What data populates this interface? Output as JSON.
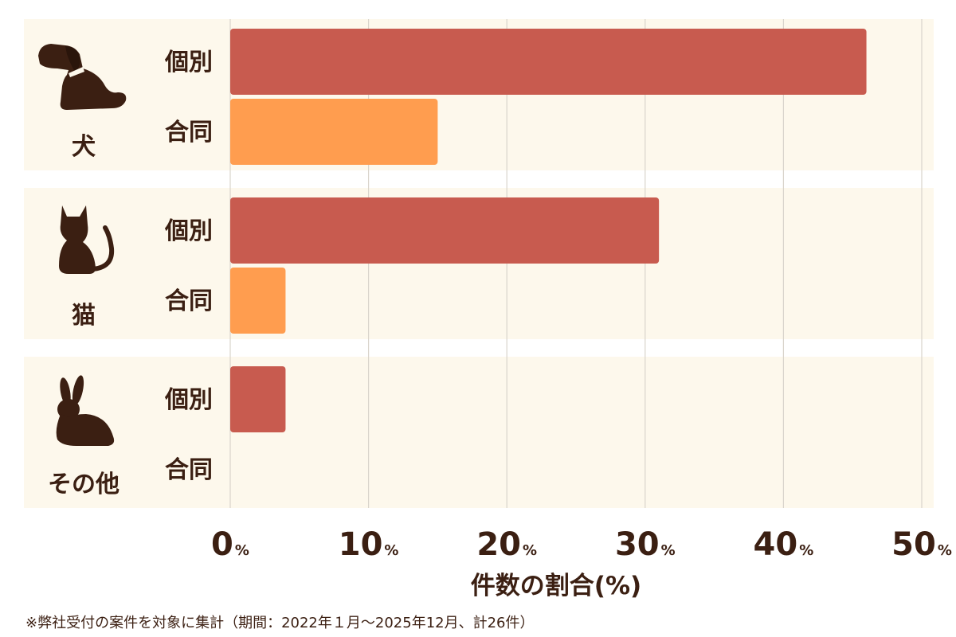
{
  "chart_data": {
    "type": "bar",
    "orientation": "horizontal",
    "groups": [
      {
        "label": "犬",
        "icon": "dog-icon",
        "bars": [
          {
            "label": "個別",
            "value": 46
          },
          {
            "label": "合同",
            "value": 15
          }
        ]
      },
      {
        "label": "猫",
        "icon": "cat-icon",
        "bars": [
          {
            "label": "個別",
            "value": 31
          },
          {
            "label": "合同",
            "value": 4
          }
        ]
      },
      {
        "label": "その他",
        "icon": "rabbit-icon",
        "bars": [
          {
            "label": "個別",
            "value": 4
          },
          {
            "label": "合同",
            "value": 0
          }
        ]
      }
    ],
    "xlim": [
      0,
      50
    ],
    "ticks": [
      0,
      10,
      20,
      30,
      40,
      50
    ],
    "tick_unit": "%",
    "xlabel": "件数の割合(%)",
    "grid": true,
    "colors": {
      "個別": "#c85b4f",
      "合同": "#ff9d4f",
      "panel": "#fdf8ec",
      "text": "#3b1f12",
      "grid": "#d9d4cc"
    }
  },
  "footnote": "※弊社受付の案件を対象に集計（期間：2022年１月〜2025年12月、計26件）"
}
